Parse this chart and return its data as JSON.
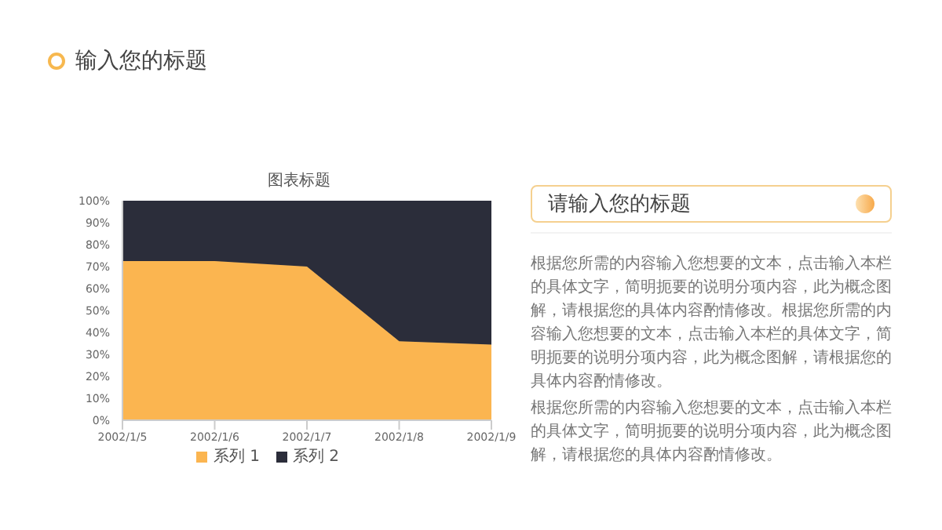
{
  "chart_data": {
    "type": "area",
    "title": "输入您的标题",
    "subtitle": "图表标题",
    "annotations": [
      "请输入您的标题",
      "根据您所需的内容输入您想要的文本，点击输入本栏的具体文字，简明扼要的说明分项内容，此为概念图解，请根据您的具体内容酌情修改。根据您所需的内容输入您想要的文本，点击输入本栏的具体文字，简明扼要的说明分项内容，此为概念图解，请根据您的具体内容酌情修改。",
      "根据您所需的内容输入您想要的文本，点击输入本栏的具体文字，简明扼要的说明分项内容，此为概念图解，请根据您的具体内容酌情修改。"
    ],
    "categories": [
      "2002/1/5",
      "2002/1/6",
      "2002/1/7",
      "2002/1/8",
      "2002/1/9"
    ],
    "stacked": true,
    "series": [
      {
        "name": "系列 1",
        "color": "#fbb550",
        "values": [
          72.5,
          72.5,
          70,
          36,
          34.5
        ]
      },
      {
        "name": "系列 2",
        "color": "#2b2d3a",
        "values": [
          27.5,
          27.5,
          30,
          64,
          65.5
        ]
      }
    ],
    "ylim": [
      0,
      100
    ],
    "yticks": [
      {
        "value": 0,
        "label": "0%"
      },
      {
        "value": 10,
        "label": "10%"
      },
      {
        "value": 20,
        "label": "20%"
      },
      {
        "value": 30,
        "label": "30%"
      },
      {
        "value": 40,
        "label": "40%"
      },
      {
        "value": 50,
        "label": "50%"
      },
      {
        "value": 60,
        "label": "60%"
      },
      {
        "value": 70,
        "label": "70%"
      },
      {
        "value": 80,
        "label": "80%"
      },
      {
        "value": 90,
        "label": "90%"
      },
      {
        "value": 100,
        "label": "100%"
      }
    ],
    "legend": "bottom"
  }
}
